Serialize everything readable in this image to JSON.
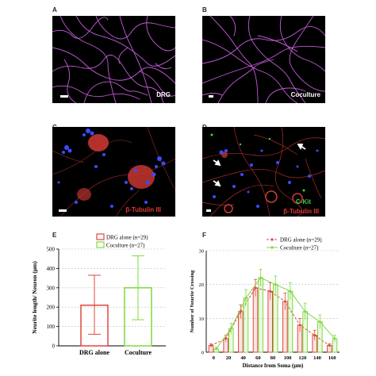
{
  "panels": {
    "A": {
      "letter": "A",
      "label": ""
    },
    "B": {
      "letter": "B",
      "label": "Coculture"
    },
    "C": {
      "letter": "C",
      "label": "β-Tubulin III"
    },
    "D": {
      "letter": "D",
      "label_green": "C-Kit",
      "label_red": "β-Tubulin III"
    },
    "E": {
      "letter": "E"
    },
    "F": {
      "letter": "F"
    }
  },
  "panelA_label": "DRG",
  "colors": {
    "neurite_magenta": "#c15bd6",
    "nuclei_blue": "#3a4cff",
    "tubulin_red": "#d23a35",
    "ckit_green": "#3ad14a",
    "drg_red": "#e0473f",
    "coculture_green": "#7fd83f",
    "grid": "#bdbdbd"
  },
  "chart_data": [
    {
      "type": "bar",
      "title": "",
      "xlabel": "",
      "ylabel": "Neurite length/ Neuron (μm)",
      "ylim": [
        0,
        500
      ],
      "yticks": [
        "0",
        "100",
        "200",
        "300",
        "400",
        "500"
      ],
      "categories": [
        "DRG alone",
        "Coculture"
      ],
      "legend": [
        "DRG alone (n=29)",
        "Coculture (n=27)"
      ],
      "legend_position": "top-right",
      "values": [
        210,
        300
      ],
      "errors_upper": [
        365,
        465
      ],
      "errors_lower": [
        60,
        135
      ],
      "grid": true
    },
    {
      "type": "bar",
      "title": "",
      "xlabel": "Distance from Soma (μm)",
      "ylabel": "Number of Neurite Crossing",
      "ylim": [
        0,
        30
      ],
      "yticks": [
        "0",
        "10",
        "20",
        "30"
      ],
      "categories": [
        "0",
        "20",
        "40",
        "60",
        "80",
        "100",
        "120",
        "140",
        "160"
      ],
      "legend_position": "top-right",
      "grid": true,
      "series": [
        {
          "name": "DRG alone (n=29)",
          "values": [
            2,
            4,
            12,
            19,
            18,
            15,
            8,
            5,
            2
          ],
          "errors": [
            0.5,
            1,
            2,
            2.5,
            2.5,
            2.5,
            2,
            1.5,
            0.5
          ]
        },
        {
          "name": "Coculture (n=27)",
          "values": [
            1,
            7,
            16,
            22,
            20,
            18,
            12,
            9,
            4
          ],
          "errors": [
            0.5,
            1.5,
            2.5,
            2.5,
            2.5,
            2.5,
            2.5,
            2,
            1
          ]
        }
      ]
    }
  ]
}
